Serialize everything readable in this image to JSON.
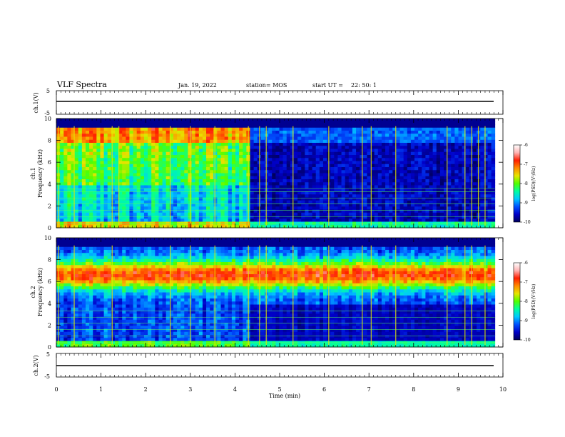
{
  "header": {
    "title": "VLF Spectra",
    "date": "Jan. 19, 2022",
    "station": "station= MOS",
    "start_label": "start  UT =",
    "start_time": "22: 50: 1"
  },
  "panels": {
    "ch1_waveform": {
      "label": "ch.1(V)",
      "ticks": [
        "5",
        "-5"
      ]
    },
    "ch1_spectrogram": {
      "ylabel_line1": "ch.1",
      "ylabel_line2": "Frequency (kHz)",
      "ticks": [
        "0",
        "2",
        "4",
        "6",
        "8",
        "10"
      ]
    },
    "ch2_spectrogram": {
      "ylabel_line1": "ch.2",
      "ylabel_line2": "Frequency (kHz)",
      "ticks": [
        "0",
        "2",
        "4",
        "6",
        "8",
        "10"
      ]
    },
    "ch2_waveform": {
      "label": "ch.2(V)",
      "ticks": [
        "5",
        "-5"
      ]
    }
  },
  "colorbar": {
    "label": "log(PSD)(V²/Hz)",
    "ticks": [
      "-6",
      "-7",
      "-8",
      "-9",
      "-10"
    ],
    "stops": [
      "#00005a",
      "#0000c8",
      "#0050ff",
      "#00c8ff",
      "#00ffa0",
      "#50ff00",
      "#e6e600",
      "#ff8c00",
      "#ff1e00",
      "#ffb4b4",
      "#ffffff"
    ]
  },
  "xaxis": {
    "label": "Time (min)",
    "ticks": [
      "0",
      "1",
      "2",
      "3",
      "4",
      "5",
      "6",
      "7",
      "8",
      "9",
      "10"
    ]
  },
  "chart_data": {
    "type": "heatmap",
    "title": "VLF Spectra",
    "xlabel": "Time (min)",
    "xlim": [
      0,
      10
    ],
    "data_extent_x": [
      0,
      9.82
    ],
    "channels": [
      {
        "name": "ch.1",
        "ylabel": "Frequency (kHz)",
        "ylim": [
          0,
          10
        ],
        "waveform_ylim": [
          -5,
          5
        ],
        "qualitative_note": "broadband emission 0.5-9 kHz until ~4.3 min, weaker afterwards; strong band near 8-9 kHz",
        "bright_spikes_min": [
          0.05,
          0.4,
          1.25,
          1.4,
          2.55,
          3.0,
          3.55,
          4.3,
          4.55,
          4.7,
          5.3,
          6.1,
          6.85,
          7.05,
          7.6,
          8.75,
          9.15,
          9.3,
          9.45,
          9.6
        ],
        "narrowband_lines_khz": [
          0.4,
          1.0,
          1.6,
          2.2,
          2.7,
          3.3,
          3.6
        ]
      },
      {
        "name": "ch.2",
        "ylabel": "Frequency (kHz)",
        "ylim": [
          0,
          10
        ],
        "waveform_ylim": [
          -5,
          5
        ],
        "qualitative_note": "intense band centred near 6-7 kHz throughout; background weaker after ~4.3 min",
        "bright_spikes_min": [
          0.05,
          0.4,
          1.25,
          2.55,
          3.0,
          3.55,
          4.3,
          4.55,
          4.7,
          5.3,
          6.1,
          6.85,
          7.05,
          7.6,
          8.75,
          9.15,
          9.3,
          9.6
        ],
        "narrowband_lines_khz": [
          0.4,
          1.0,
          1.6,
          2.2,
          2.7,
          3.3
        ]
      }
    ],
    "colorbar_range": [
      -10,
      -6
    ],
    "colorbar_label": "log(PSD)(V²/Hz)"
  }
}
